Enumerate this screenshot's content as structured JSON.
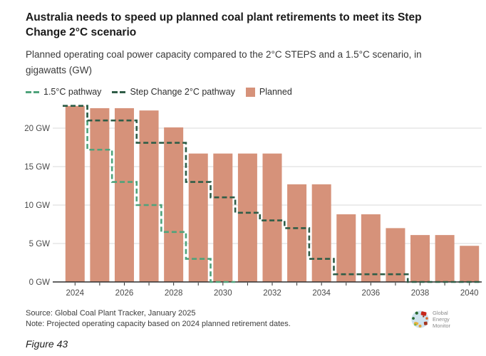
{
  "header": {
    "title": "Australia needs to speed up planned coal plant retirements to meet its Step Change 2°C scenario",
    "subtitle": "Planned operating coal power capacity compared to the 2°C STEPS and a 1.5°C scenario, in gigawatts (GW)"
  },
  "legend": [
    {
      "label": "1.5°C pathway",
      "type": "dash",
      "color": "#4FA37B"
    },
    {
      "label": "Step Change 2°C pathway",
      "type": "dash",
      "color": "#2F5D47"
    },
    {
      "label": "Planned",
      "type": "square",
      "color": "#D6927A"
    }
  ],
  "chart_data": {
    "type": "bar",
    "title": "Australia needs to speed up planned coal plant retirements to meet its Step Change 2°C scenario",
    "subtitle": "Planned operating coal power capacity compared to the 2°C STEPS and a 1.5°C scenario, in gigawatts (GW)",
    "x": [
      2024,
      2025,
      2026,
      2027,
      2028,
      2029,
      2030,
      2031,
      2032,
      2033,
      2034,
      2035,
      2036,
      2037,
      2038,
      2039,
      2040
    ],
    "series": [
      {
        "name": "Planned",
        "type": "bar",
        "color": "#D6927A",
        "values": [
          22.9,
          22.6,
          22.6,
          22.3,
          20.1,
          16.7,
          16.7,
          16.7,
          16.7,
          12.7,
          12.7,
          8.8,
          8.8,
          7.0,
          6.1,
          6.1,
          4.7
        ]
      },
      {
        "name": "1.5°C pathway",
        "type": "step-line",
        "color": "#4FA37B",
        "values": [
          22.9,
          17.2,
          13,
          10,
          6.5,
          3,
          0
        ]
      },
      {
        "name": "Step Change 2°C pathway",
        "type": "step-line",
        "color": "#2F5D47",
        "values": [
          22.9,
          21,
          21,
          18.1,
          18.1,
          13,
          11,
          9,
          8,
          7,
          3,
          1,
          1,
          1,
          0,
          0,
          0
        ]
      }
    ],
    "yticks": [
      0,
      5,
      10,
      15,
      20
    ],
    "ytick_labels": [
      "0 GW",
      "5 GW",
      "10 GW",
      "15 GW",
      "20 GW"
    ],
    "xtick_labels": [
      "2024",
      "2026",
      "2028",
      "2030",
      "2032",
      "2034",
      "2036",
      "2038",
      "2040"
    ],
    "ylim": [
      0,
      23.4
    ],
    "grid": "horizontal",
    "legend_position": "top"
  },
  "footer": {
    "source": "Source: Global Coal Plant Tracker, January 2025",
    "note": "Note: Projected operating capacity based on 2024 planned retirement dates.",
    "logo_lines": [
      "Global",
      "Energy",
      "Monitor"
    ],
    "figure_label": "Figure 43"
  }
}
